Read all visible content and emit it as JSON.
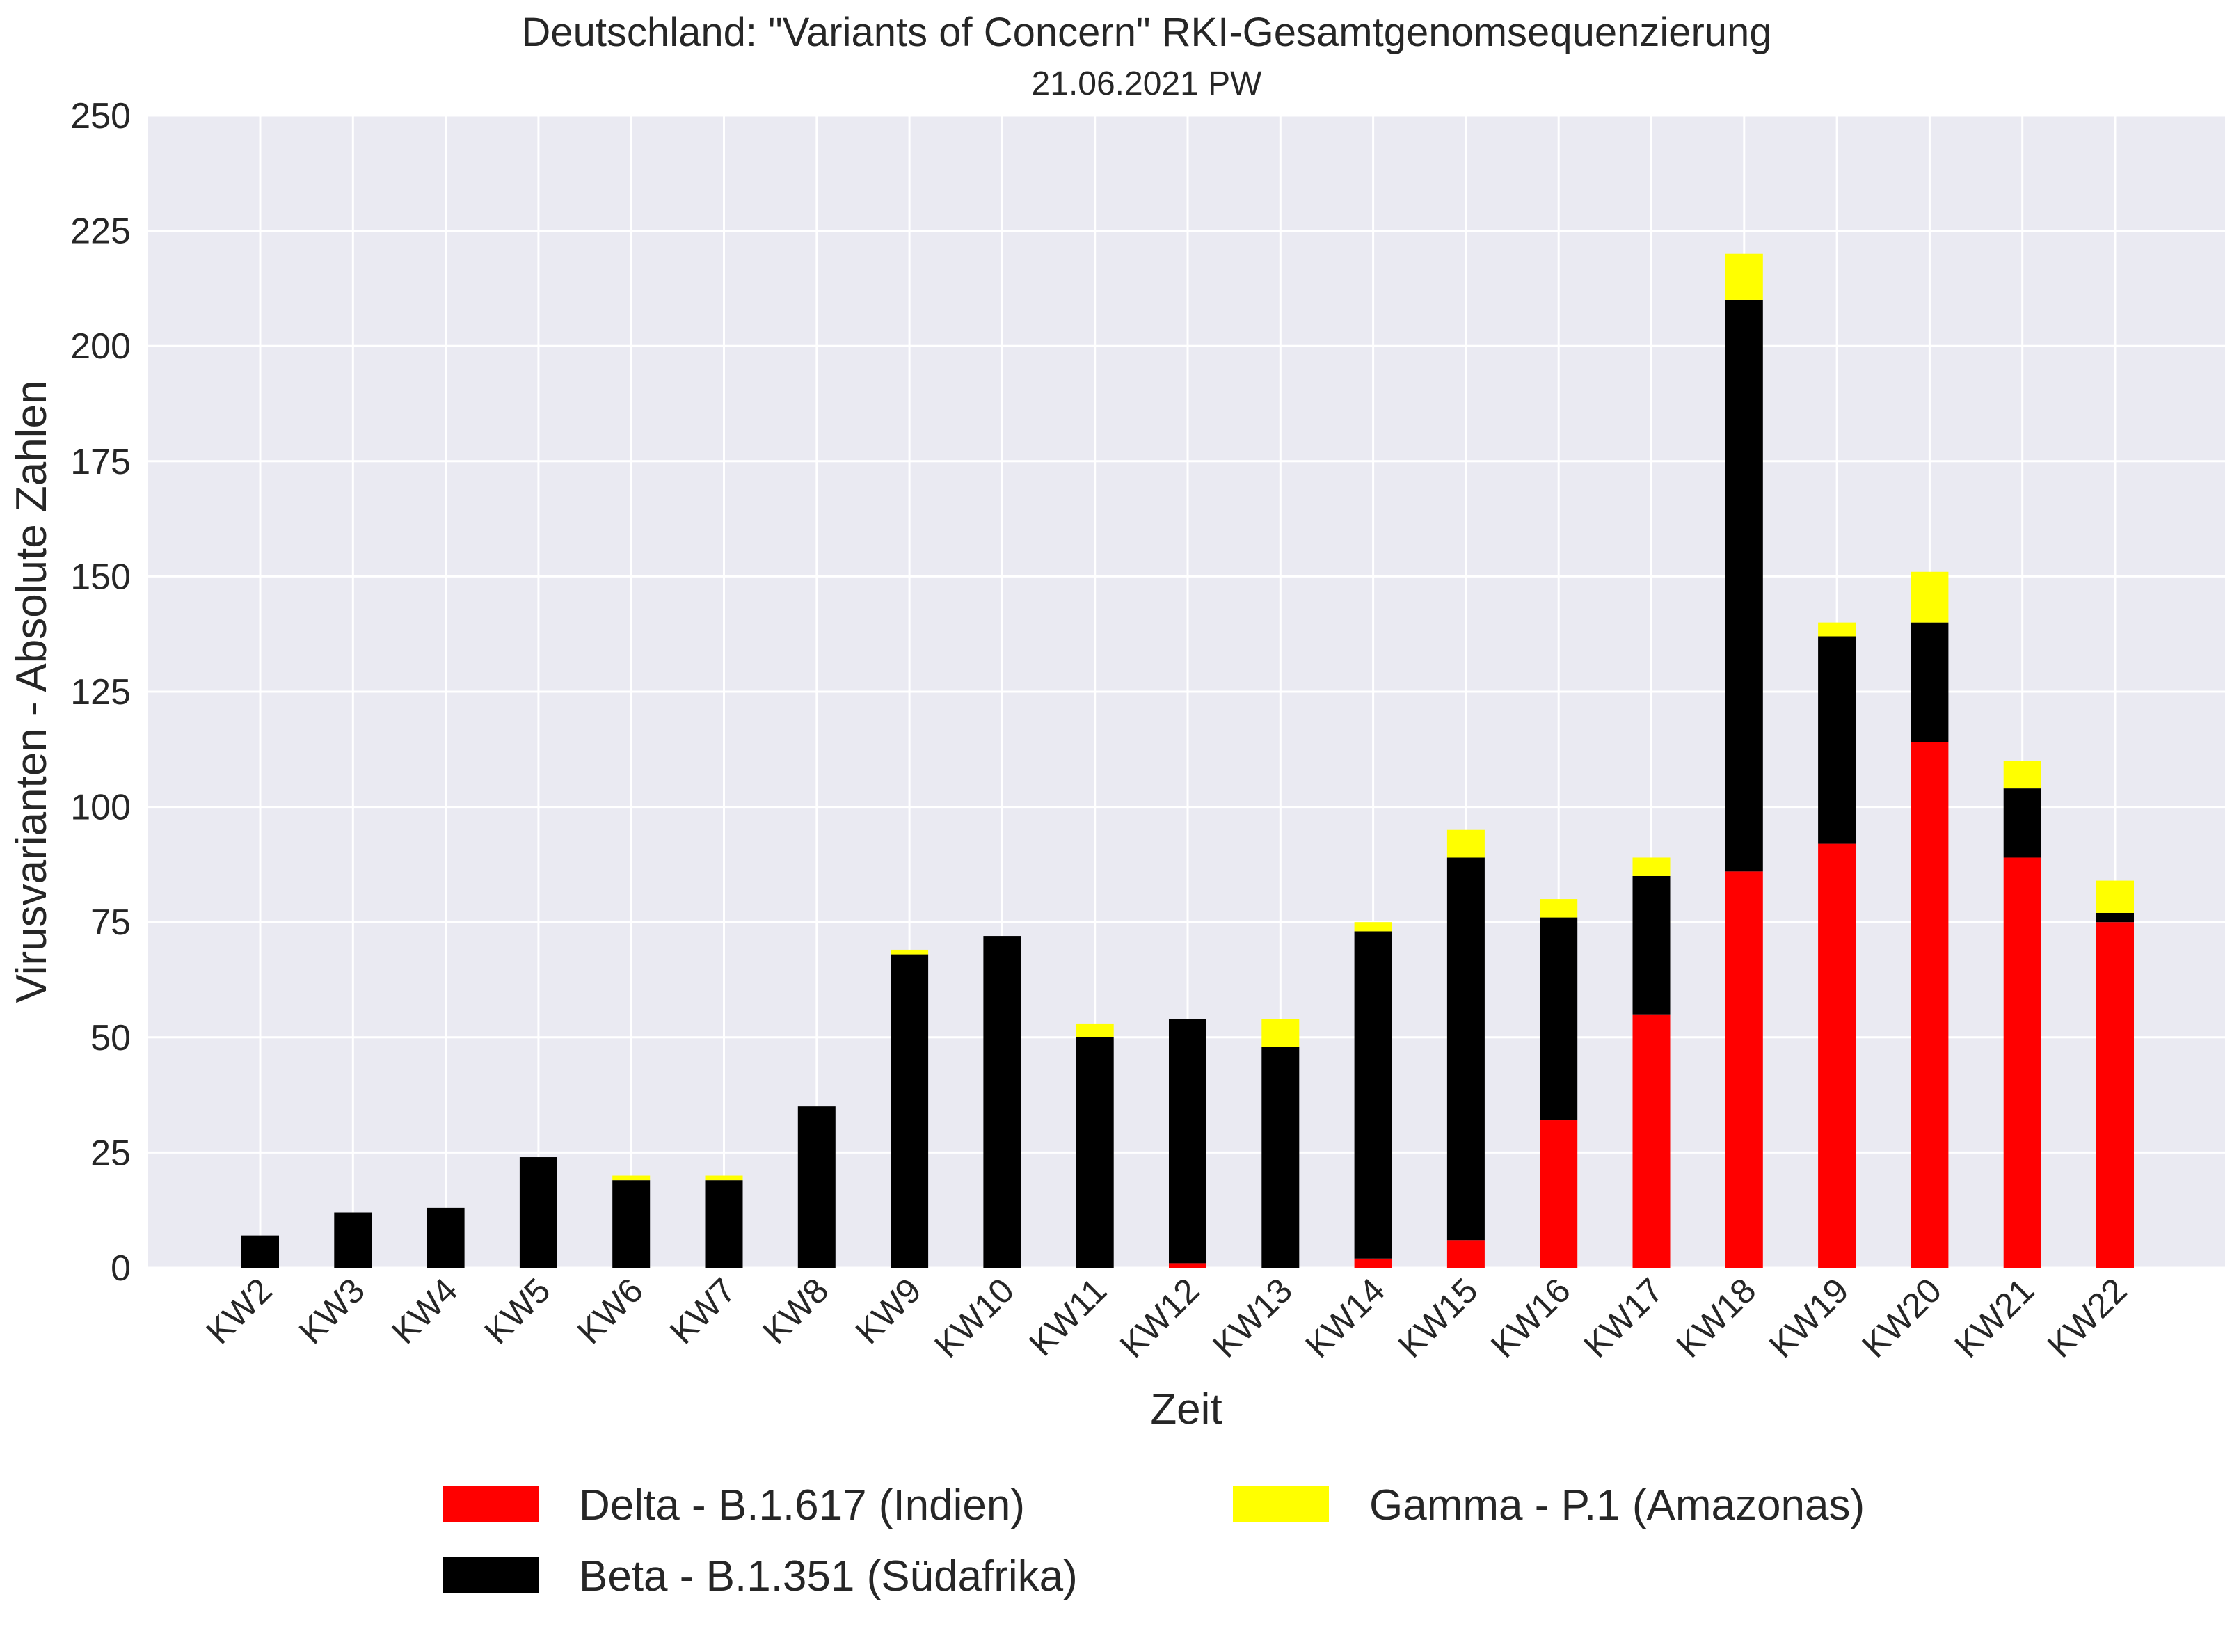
{
  "chart_data": {
    "type": "bar",
    "stacked": true,
    "title": "Deutschland: \"Variants of Concern\" RKI-Gesamtgenomsequenzierung",
    "subtitle": "21.06.2021 PW",
    "xlabel": "Zeit",
    "ylabel": "Virusvarianten - Absolute Zahlen",
    "ylim": [
      0,
      250
    ],
    "yticks": [
      0,
      25,
      50,
      75,
      100,
      125,
      150,
      175,
      200,
      225,
      250
    ],
    "grid": true,
    "legend_position": "bottom",
    "categories": [
      "KW2",
      "KW3",
      "KW4",
      "KW5",
      "KW6",
      "KW7",
      "KW8",
      "KW9",
      "KW10",
      "KW11",
      "KW12",
      "KW13",
      "KW14",
      "KW15",
      "KW16",
      "KW17",
      "KW18",
      "KW19",
      "KW20",
      "KW21",
      "KW22"
    ],
    "series": [
      {
        "name": "Delta - B.1.617 (Indien)",
        "color": "#ff0000",
        "values": [
          0,
          0,
          0,
          0,
          0,
          0,
          0,
          0,
          0,
          0,
          1,
          0,
          2,
          6,
          32,
          55,
          86,
          92,
          114,
          89,
          75
        ]
      },
      {
        "name": "Beta - B.1.351 (Südafrika)",
        "color": "#000000",
        "values": [
          7,
          12,
          13,
          24,
          19,
          19,
          35,
          68,
          72,
          50,
          53,
          48,
          71,
          83,
          44,
          30,
          124,
          45,
          26,
          15,
          2
        ]
      },
      {
        "name": "Gamma - P.1 (Amazonas)",
        "color": "#ffff00",
        "values": [
          0,
          0,
          0,
          0,
          1,
          1,
          0,
          1,
          0,
          3,
          0,
          6,
          2,
          6,
          4,
          4,
          10,
          3,
          11,
          6,
          7
        ]
      }
    ],
    "legend_order": [
      0,
      2,
      1
    ]
  },
  "style": {
    "plot_background": "#eaeaf2",
    "grid_color": "#ffffff",
    "text_color": "#262626"
  }
}
